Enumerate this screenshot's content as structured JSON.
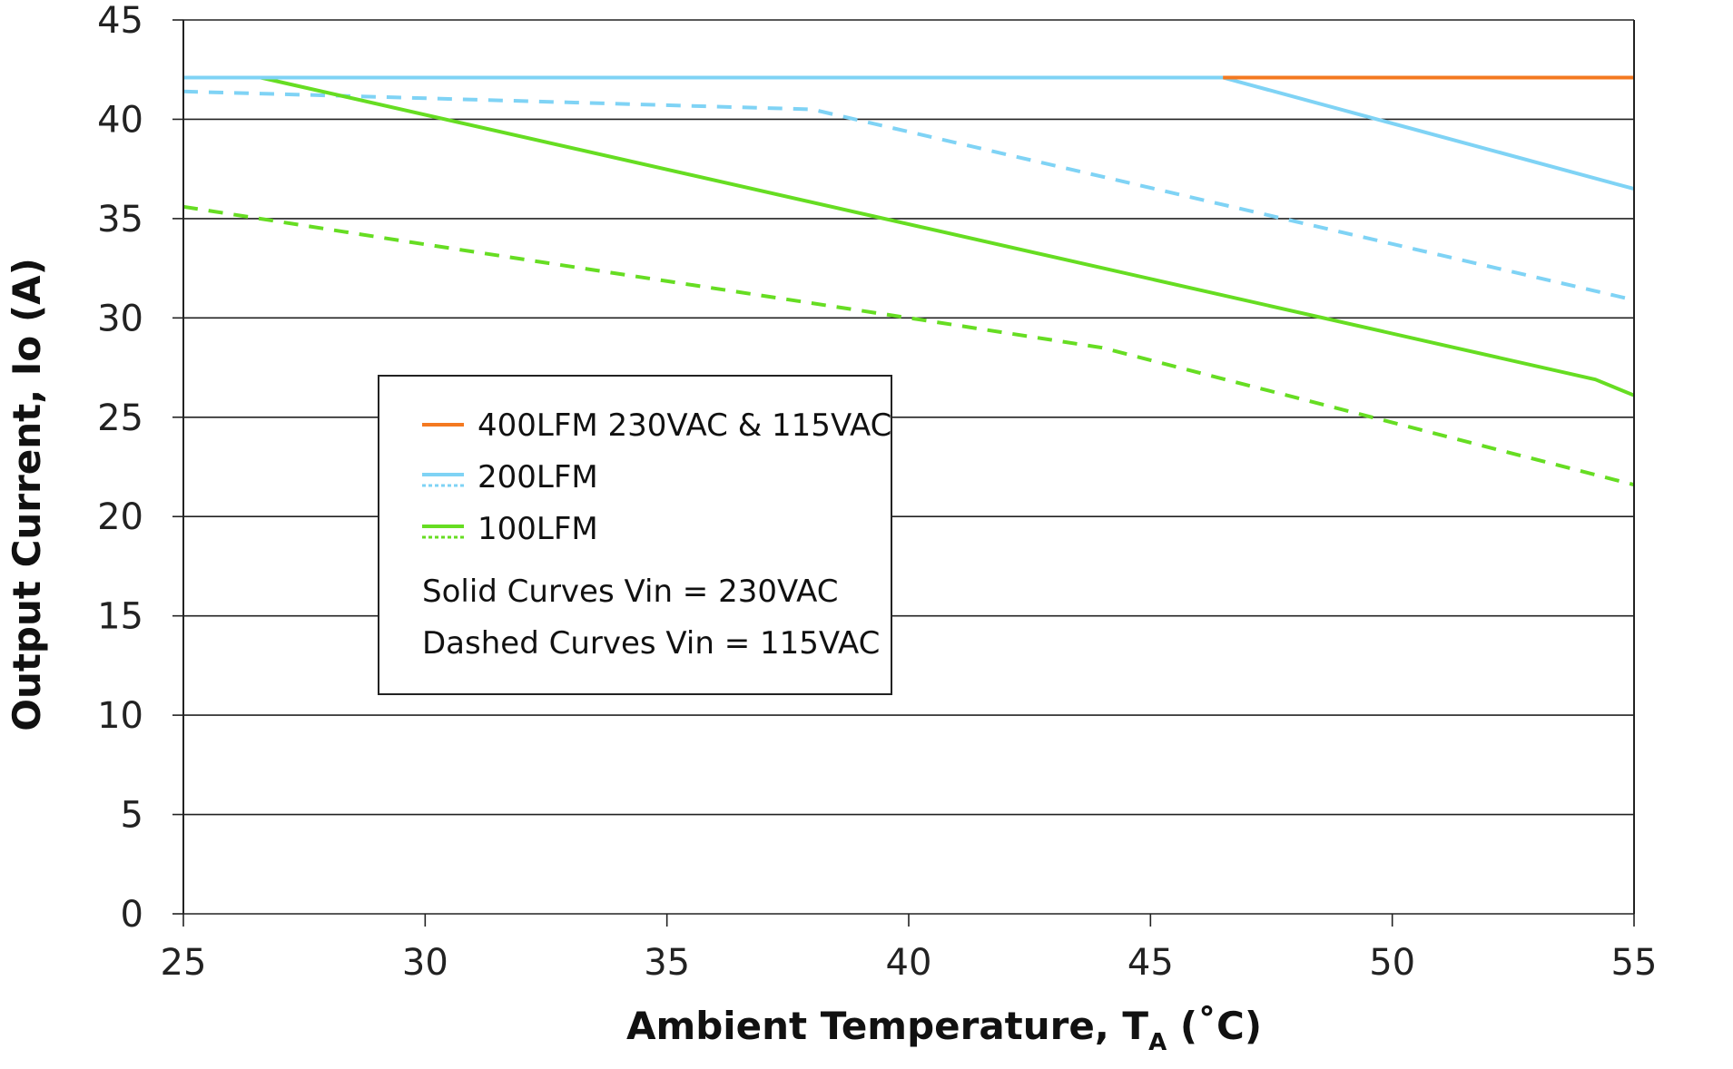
{
  "chart_data": {
    "type": "line",
    "title": "",
    "xlabel": "Ambient Temperature, T",
    "xlabel_subscript": "A",
    "xlabel_suffix": " (˚C)",
    "ylabel": "Output Current, Io (A)",
    "xlim": [
      25,
      55
    ],
    "ylim": [
      0,
      45
    ],
    "x_ticks": [
      "25",
      "30",
      "35",
      "40",
      "45",
      "50",
      "55"
    ],
    "y_ticks": [
      "0",
      "5",
      "10",
      "15",
      "20",
      "25",
      "30",
      "35",
      "40",
      "45"
    ],
    "grid": "horizontal",
    "legend_position": "center-left",
    "series": [
      {
        "legend_ref": "400LFM",
        "style": "solid",
        "color": "#F47920",
        "x": [
          46.5,
          55
        ],
        "y": [
          42.1,
          42.1
        ]
      },
      {
        "legend_ref": "200LFM",
        "style": "solid",
        "color": "#7FD3F5",
        "x": [
          25,
          46.5,
          55
        ],
        "y": [
          42.1,
          42.1,
          36.5
        ]
      },
      {
        "legend_ref": "100LFM",
        "style": "solid",
        "color": "#66DD22",
        "x": [
          25,
          26.6,
          54.2,
          55
        ],
        "y": [
          42.1,
          42.1,
          26.9,
          26.1
        ]
      },
      {
        "legend_ref": "200LFM",
        "style": "dashed",
        "color": "#7FD3F5",
        "x": [
          25,
          28,
          38,
          55
        ],
        "y": [
          41.4,
          41.2,
          40.5,
          30.9
        ]
      },
      {
        "legend_ref": "100LFM",
        "style": "dashed",
        "color": "#66DD22",
        "x": [
          25,
          30,
          40,
          44,
          55
        ],
        "y": [
          35.6,
          33.7,
          30.0,
          28.5,
          21.6
        ]
      }
    ]
  },
  "legend": {
    "items": [
      {
        "label": "400LFM 230VAC & 115VAC",
        "color": "#F47920",
        "dashed_swatch": false
      },
      {
        "label": "200LFM",
        "color": "#7FD3F5",
        "dashed_swatch": true
      },
      {
        "label": "100LFM",
        "color": "#66DD22",
        "dashed_swatch": true
      }
    ],
    "note_solid": "Solid Curves Vin = 230VAC",
    "note_dashed": "Dashed Curves Vin = 115VAC"
  }
}
